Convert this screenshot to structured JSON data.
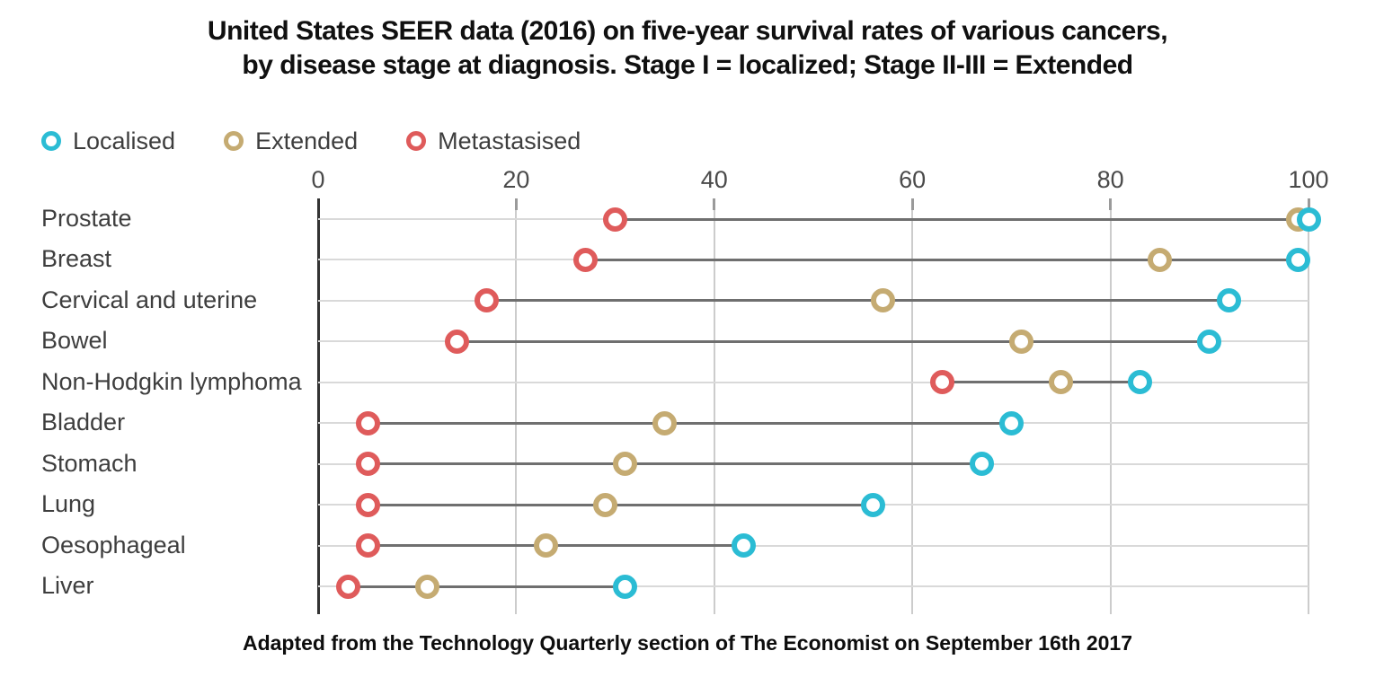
{
  "title": {
    "line1": "United States SEER data (2016) on five-year survival rates of various cancers,",
    "line2": "by disease stage at diagnosis. Stage I = localized; Stage II-III = Extended"
  },
  "legend": [
    {
      "label": "Localised",
      "color": "#2bbcd4"
    },
    {
      "label": "Extended",
      "color": "#c5ab72"
    },
    {
      "label": "Metastasised",
      "color": "#df5b5b"
    }
  ],
  "footer": "Adapted from the Technology Quarterly section of The Economist on September 16th 2017",
  "colors": {
    "localised": "#2bbcd4",
    "extended": "#c5ab72",
    "metastasised": "#df5b5b",
    "axis": "#333333",
    "gridline": "#cccccc",
    "row_line": "#d9d9d9",
    "connector": "#6f6f6f",
    "text": "#3e3e3e"
  },
  "chart_data": {
    "type": "scatter",
    "variant": "dumbbell dot plot",
    "title": "United States SEER data (2016) on five-year survival rates of various cancers, by disease stage at diagnosis. Stage I = localized; Stage II-III = Extended",
    "xlabel": "",
    "ylabel": "",
    "xlim": [
      0,
      100
    ],
    "x_ticks": [
      0,
      20,
      40,
      60,
      80,
      100
    ],
    "grid": "vertical gridlines at each x tick",
    "legend_position": "top-left",
    "categories": [
      "Prostate",
      "Breast",
      "Cervical and uterine",
      "Bowel",
      "Non-Hodgkin lymphoma",
      "Bladder",
      "Stomach",
      "Lung",
      "Oesophageal",
      "Liver"
    ],
    "series": [
      {
        "name": "Localised",
        "color": "#2bbcd4",
        "values": [
          100,
          99,
          92,
          90,
          83,
          70,
          67,
          56,
          43,
          31
        ]
      },
      {
        "name": "Extended",
        "color": "#c5ab72",
        "values": [
          99,
          85,
          57,
          71,
          75,
          35,
          31,
          29,
          23,
          11
        ]
      },
      {
        "name": "Metastasised",
        "color": "#df5b5b",
        "values": [
          30,
          27,
          17,
          14,
          63,
          5,
          5,
          5,
          5,
          3
        ]
      }
    ]
  }
}
